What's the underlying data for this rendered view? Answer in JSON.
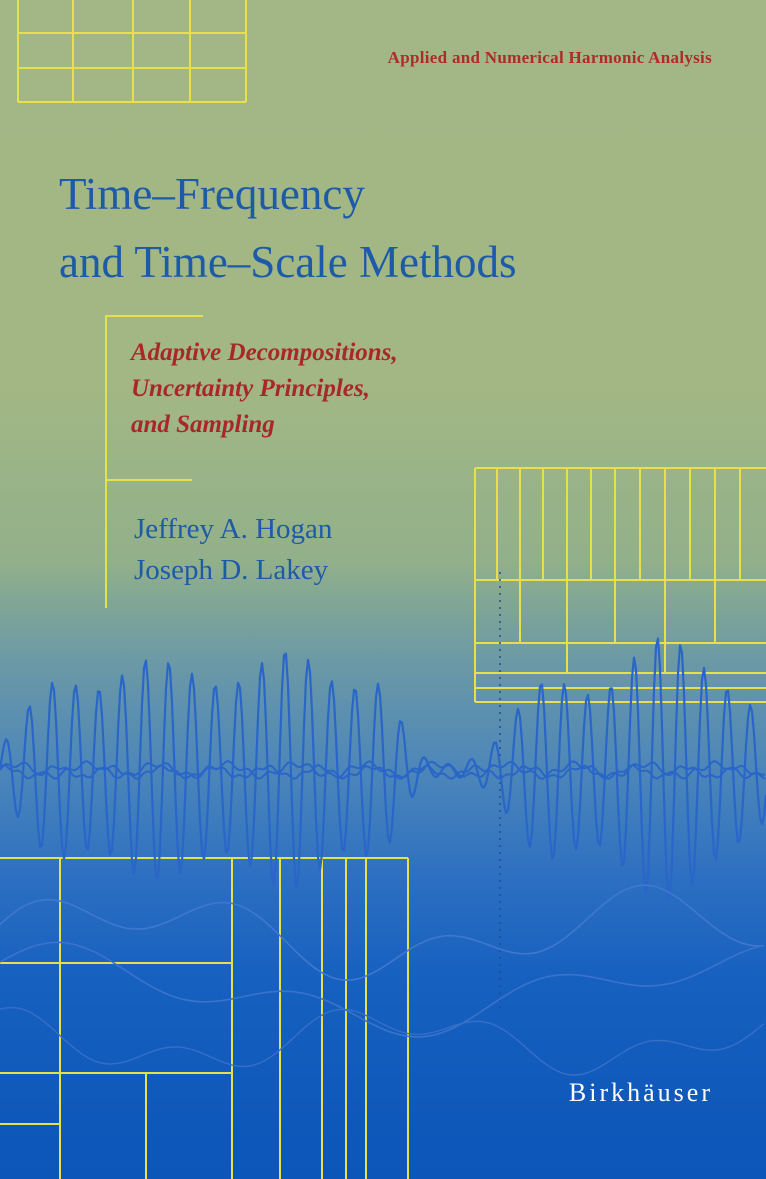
{
  "series_name": "Applied and Numerical Harmonic Analysis",
  "title_lines": [
    "Time–Frequency",
    "and Time–Scale Methods"
  ],
  "subtitle_lines": [
    "Adaptive Decompositions,",
    "Uncertainty Principles,",
    "and Sampling"
  ],
  "authors": [
    "Jeffrey A. Hogan",
    "Joseph D. Lakey"
  ],
  "publisher": "Birkhäuser",
  "colors": {
    "series_text": "#b02a2a",
    "title_text": "#1d5aa8",
    "subtitle_text": "#a8282a",
    "grid_lines": "#e8e04a",
    "waveform": "#2a66c8",
    "background_top": "#a2b785",
    "background_bottom": "#0c55b9"
  }
}
